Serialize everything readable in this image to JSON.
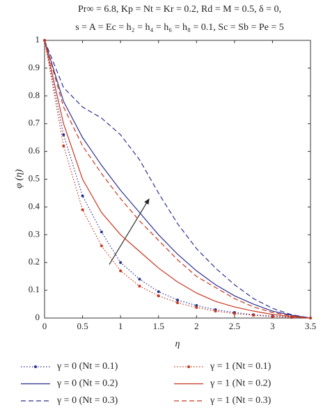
{
  "chart_data": {
    "type": "line",
    "title": [
      "Pr∞ = 6.8, Kp = Nt = Kr = 0.2, Rd = M = 0.5, δ = 0,",
      "s = A = Ec = h₂ = h₄ = h₆ = h₈ = 0.1, Sc = Sb = Pe = 5"
    ],
    "xlabel": "η",
    "ylabel": "φ (η)",
    "x": [
      0,
      0.25,
      0.5,
      0.75,
      1,
      1.25,
      1.5,
      1.75,
      2,
      2.25,
      2.5,
      2.75,
      3,
      3.25,
      3.5
    ],
    "xlim": [
      0,
      3.5
    ],
    "xticks": [
      0,
      0.5,
      1,
      1.5,
      2,
      2.5,
      3,
      3.5
    ],
    "ylim": [
      0,
      1
    ],
    "yticks": [
      0,
      0.1,
      0.2,
      0.3,
      0.4,
      0.5,
      0.6,
      0.7,
      0.8,
      0.9,
      1
    ],
    "grid": false,
    "series": [
      {
        "name": "γ = 0 (Nt = 0.1)",
        "color": "#2b2f8f",
        "dash": "dot",
        "markers": true,
        "values": [
          1,
          0.66,
          0.44,
          0.31,
          0.2,
          0.14,
          0.095,
          0.065,
          0.045,
          0.03,
          0.02,
          0.012,
          0.007,
          0.003,
          0
        ]
      },
      {
        "name": "γ = 1 (Nt = 0.1)",
        "color": "#c8351d",
        "dash": "dot",
        "markers": true,
        "values": [
          1,
          0.62,
          0.39,
          0.26,
          0.17,
          0.115,
          0.08,
          0.055,
          0.038,
          0.025,
          0.016,
          0.01,
          0.005,
          0.002,
          0
        ]
      },
      {
        "name": "γ = 0 (Nt = 0.2)",
        "color": "#2b2f8f",
        "dash": "solid",
        "markers": false,
        "values": [
          1,
          0.78,
          0.65,
          0.55,
          0.46,
          0.38,
          0.3,
          0.23,
          0.17,
          0.12,
          0.08,
          0.05,
          0.025,
          0.01,
          0
        ]
      },
      {
        "name": "γ = 1 (Nt = 0.2)",
        "color": "#c8351d",
        "dash": "solid",
        "markers": false,
        "values": [
          1,
          0.7,
          0.5,
          0.38,
          0.3,
          0.24,
          0.18,
          0.13,
          0.09,
          0.06,
          0.04,
          0.025,
          0.013,
          0.005,
          0
        ]
      },
      {
        "name": "γ = 0 (Nt = 0.3)",
        "color": "#2b2f8f",
        "dash": "dash",
        "markers": false,
        "values": [
          1,
          0.83,
          0.76,
          0.72,
          0.66,
          0.57,
          0.45,
          0.34,
          0.25,
          0.18,
          0.12,
          0.07,
          0.035,
          0.012,
          0
        ]
      },
      {
        "name": "γ = 1 (Nt = 0.3)",
        "color": "#c8351d",
        "dash": "dash",
        "markers": false,
        "values": [
          1,
          0.76,
          0.62,
          0.52,
          0.43,
          0.35,
          0.28,
          0.21,
          0.15,
          0.11,
          0.07,
          0.04,
          0.02,
          0.008,
          0
        ]
      }
    ]
  }
}
